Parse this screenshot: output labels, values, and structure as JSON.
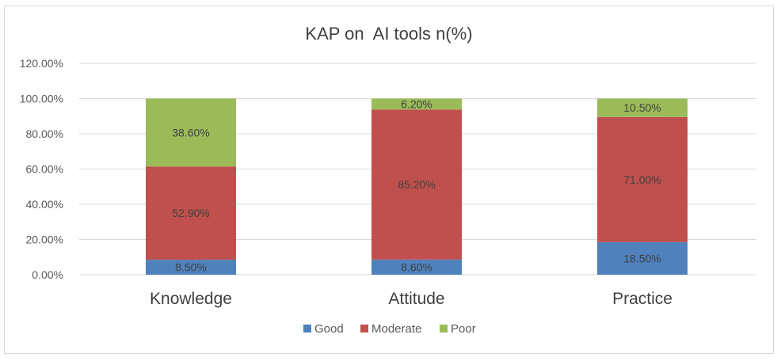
{
  "colors": {
    "good": "#4f81bd",
    "moderate": "#c0504d",
    "poor": "#9bbb59",
    "grid": "#d9d9d9",
    "text": "#595959",
    "label": "#404040"
  },
  "chart_data": {
    "type": "bar",
    "stacked": true,
    "title": "KAP on  AI tools n(%)",
    "xlabel": "",
    "ylabel": "",
    "categories": [
      "Knowledge",
      "Attitude",
      "Practice"
    ],
    "series": [
      {
        "name": "Good",
        "values": [
          8.5,
          8.6,
          18.5
        ],
        "labels": [
          "8.50%",
          "8.60%",
          "18.50%"
        ],
        "color": "#4f81bd"
      },
      {
        "name": "Moderate",
        "values": [
          52.9,
          85.2,
          71.0
        ],
        "labels": [
          "52.90%",
          "85.20%",
          "71.00%"
        ],
        "color": "#c0504d"
      },
      {
        "name": "Poor",
        "values": [
          38.6,
          6.2,
          10.5
        ],
        "labels": [
          "38.60%",
          "6.20%",
          "10.50%"
        ],
        "color": "#9bbb59"
      }
    ],
    "ylim": [
      0,
      120
    ],
    "yticks": [
      "0.00%",
      "20.00%",
      "40.00%",
      "60.00%",
      "80.00%",
      "100.00%",
      "120.00%"
    ],
    "ytick_values": [
      0,
      20,
      40,
      60,
      80,
      100,
      120
    ],
    "grid": true,
    "legend_position": "bottom"
  }
}
